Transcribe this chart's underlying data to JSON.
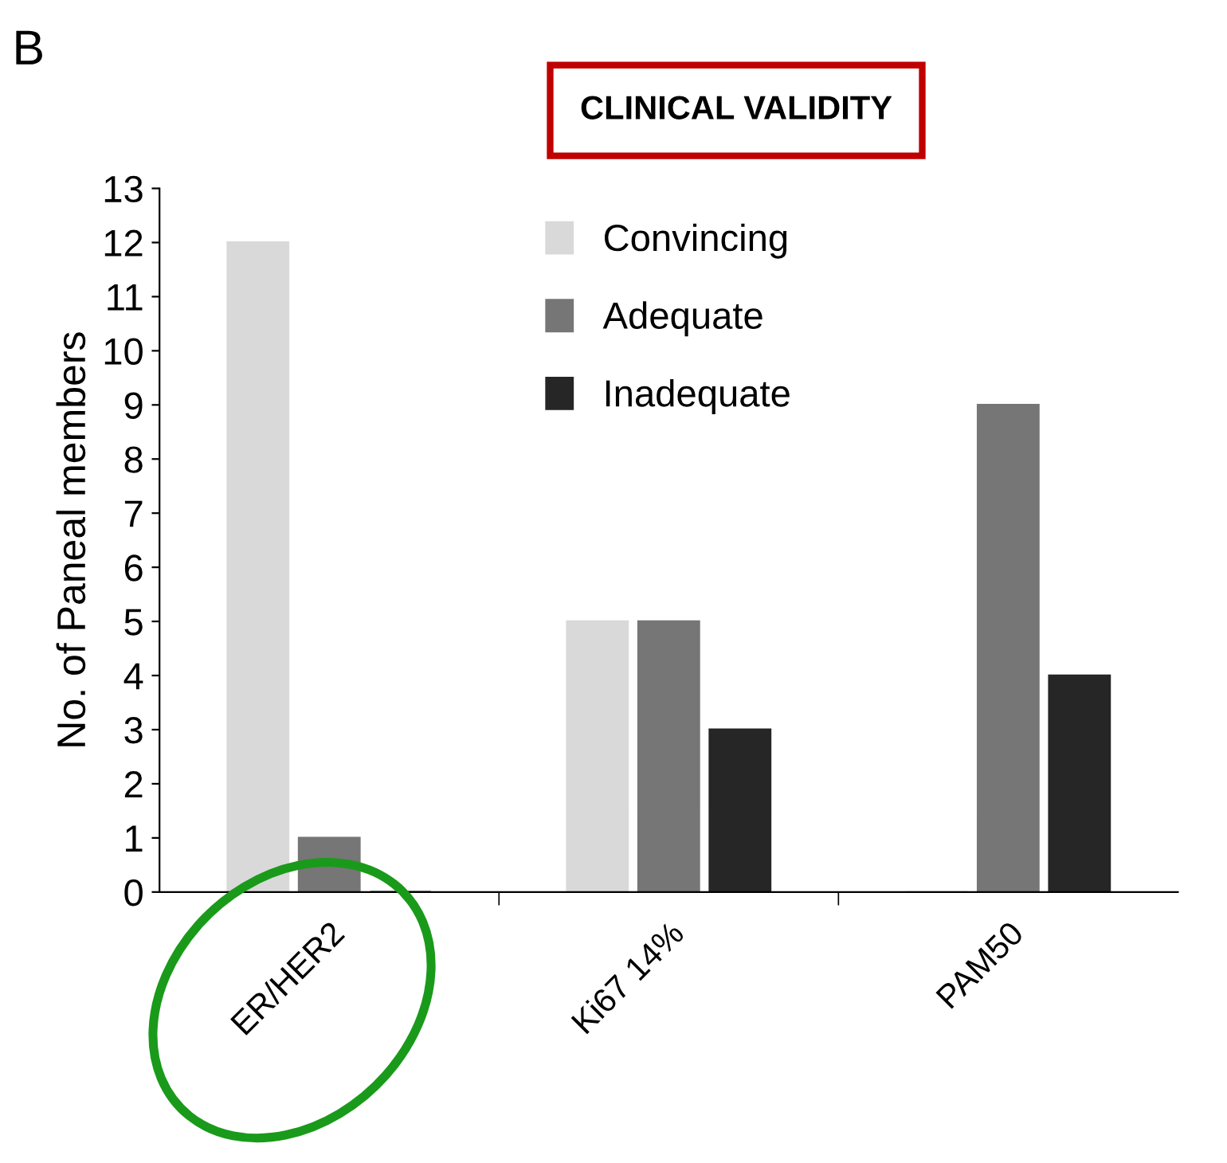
{
  "chart_data": {
    "type": "bar",
    "title": "CLINICAL VALIDITY",
    "ylabel": "No. of Paneal members",
    "categories": [
      "ER/HER2",
      "Ki67 14%",
      "PAM50"
    ],
    "series": [
      {
        "name": "Convincing",
        "color": "#d9d9d9",
        "values": [
          12,
          5,
          0
        ]
      },
      {
        "name": "Adequate",
        "color": "#767676",
        "values": [
          1,
          5,
          9
        ]
      },
      {
        "name": "Inadequate",
        "color": "#262626",
        "values": [
          0,
          3,
          4
        ]
      }
    ],
    "ylim": [
      0,
      13
    ],
    "yticks": [
      0,
      1,
      2,
      3,
      4,
      5,
      6,
      7,
      8,
      9,
      10,
      11,
      12,
      13
    ],
    "grid": false,
    "legend": "top",
    "annotations": [
      "B"
    ]
  }
}
